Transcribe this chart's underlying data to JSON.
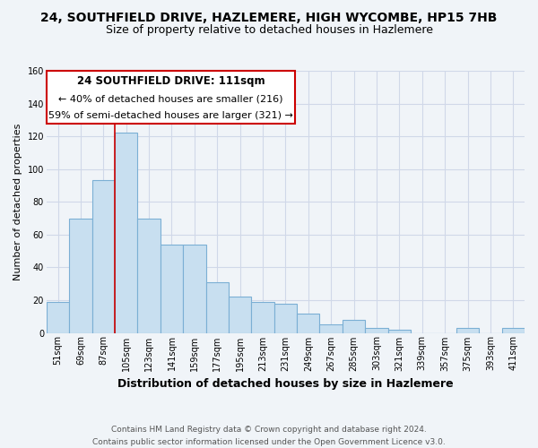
{
  "title": "24, SOUTHFIELD DRIVE, HAZLEMERE, HIGH WYCOMBE, HP15 7HB",
  "subtitle": "Size of property relative to detached houses in Hazlemere",
  "xlabel": "Distribution of detached houses by size in Hazlemere",
  "ylabel": "Number of detached properties",
  "bar_values": [
    19,
    70,
    93,
    122,
    70,
    54,
    54,
    31,
    22,
    19,
    18,
    12,
    5,
    8,
    3,
    2,
    0,
    0,
    3,
    0,
    3
  ],
  "bar_labels": [
    "51sqm",
    "69sqm",
    "87sqm",
    "105sqm",
    "123sqm",
    "141sqm",
    "159sqm",
    "177sqm",
    "195sqm",
    "213sqm",
    "231sqm",
    "249sqm",
    "267sqm",
    "285sqm",
    "303sqm",
    "321sqm",
    "339sqm",
    "357sqm",
    "375sqm",
    "393sqm",
    "411sqm"
  ],
  "bar_color": "#c8dff0",
  "bar_edge_color": "#7bafd4",
  "grid_color": "#d0d8e8",
  "background_color": "#f0f4f8",
  "vline_color": "#cc0000",
  "vline_x_index": 3,
  "annotation_title": "24 SOUTHFIELD DRIVE: 111sqm",
  "annotation_line1": "← 40% of detached houses are smaller (216)",
  "annotation_line2": "59% of semi-detached houses are larger (321) →",
  "annotation_box_color": "#ffffff",
  "annotation_box_edge": "#cc0000",
  "ylim": [
    0,
    160
  ],
  "yticks": [
    0,
    20,
    40,
    60,
    80,
    100,
    120,
    140,
    160
  ],
  "footer_line1": "Contains HM Land Registry data © Crown copyright and database right 2024.",
  "footer_line2": "Contains public sector information licensed under the Open Government Licence v3.0.",
  "title_fontsize": 10,
  "subtitle_fontsize": 9,
  "xlabel_fontsize": 9,
  "ylabel_fontsize": 8,
  "tick_fontsize": 7,
  "footer_fontsize": 6.5,
  "annotation_title_fontsize": 8.5,
  "annotation_body_fontsize": 8
}
